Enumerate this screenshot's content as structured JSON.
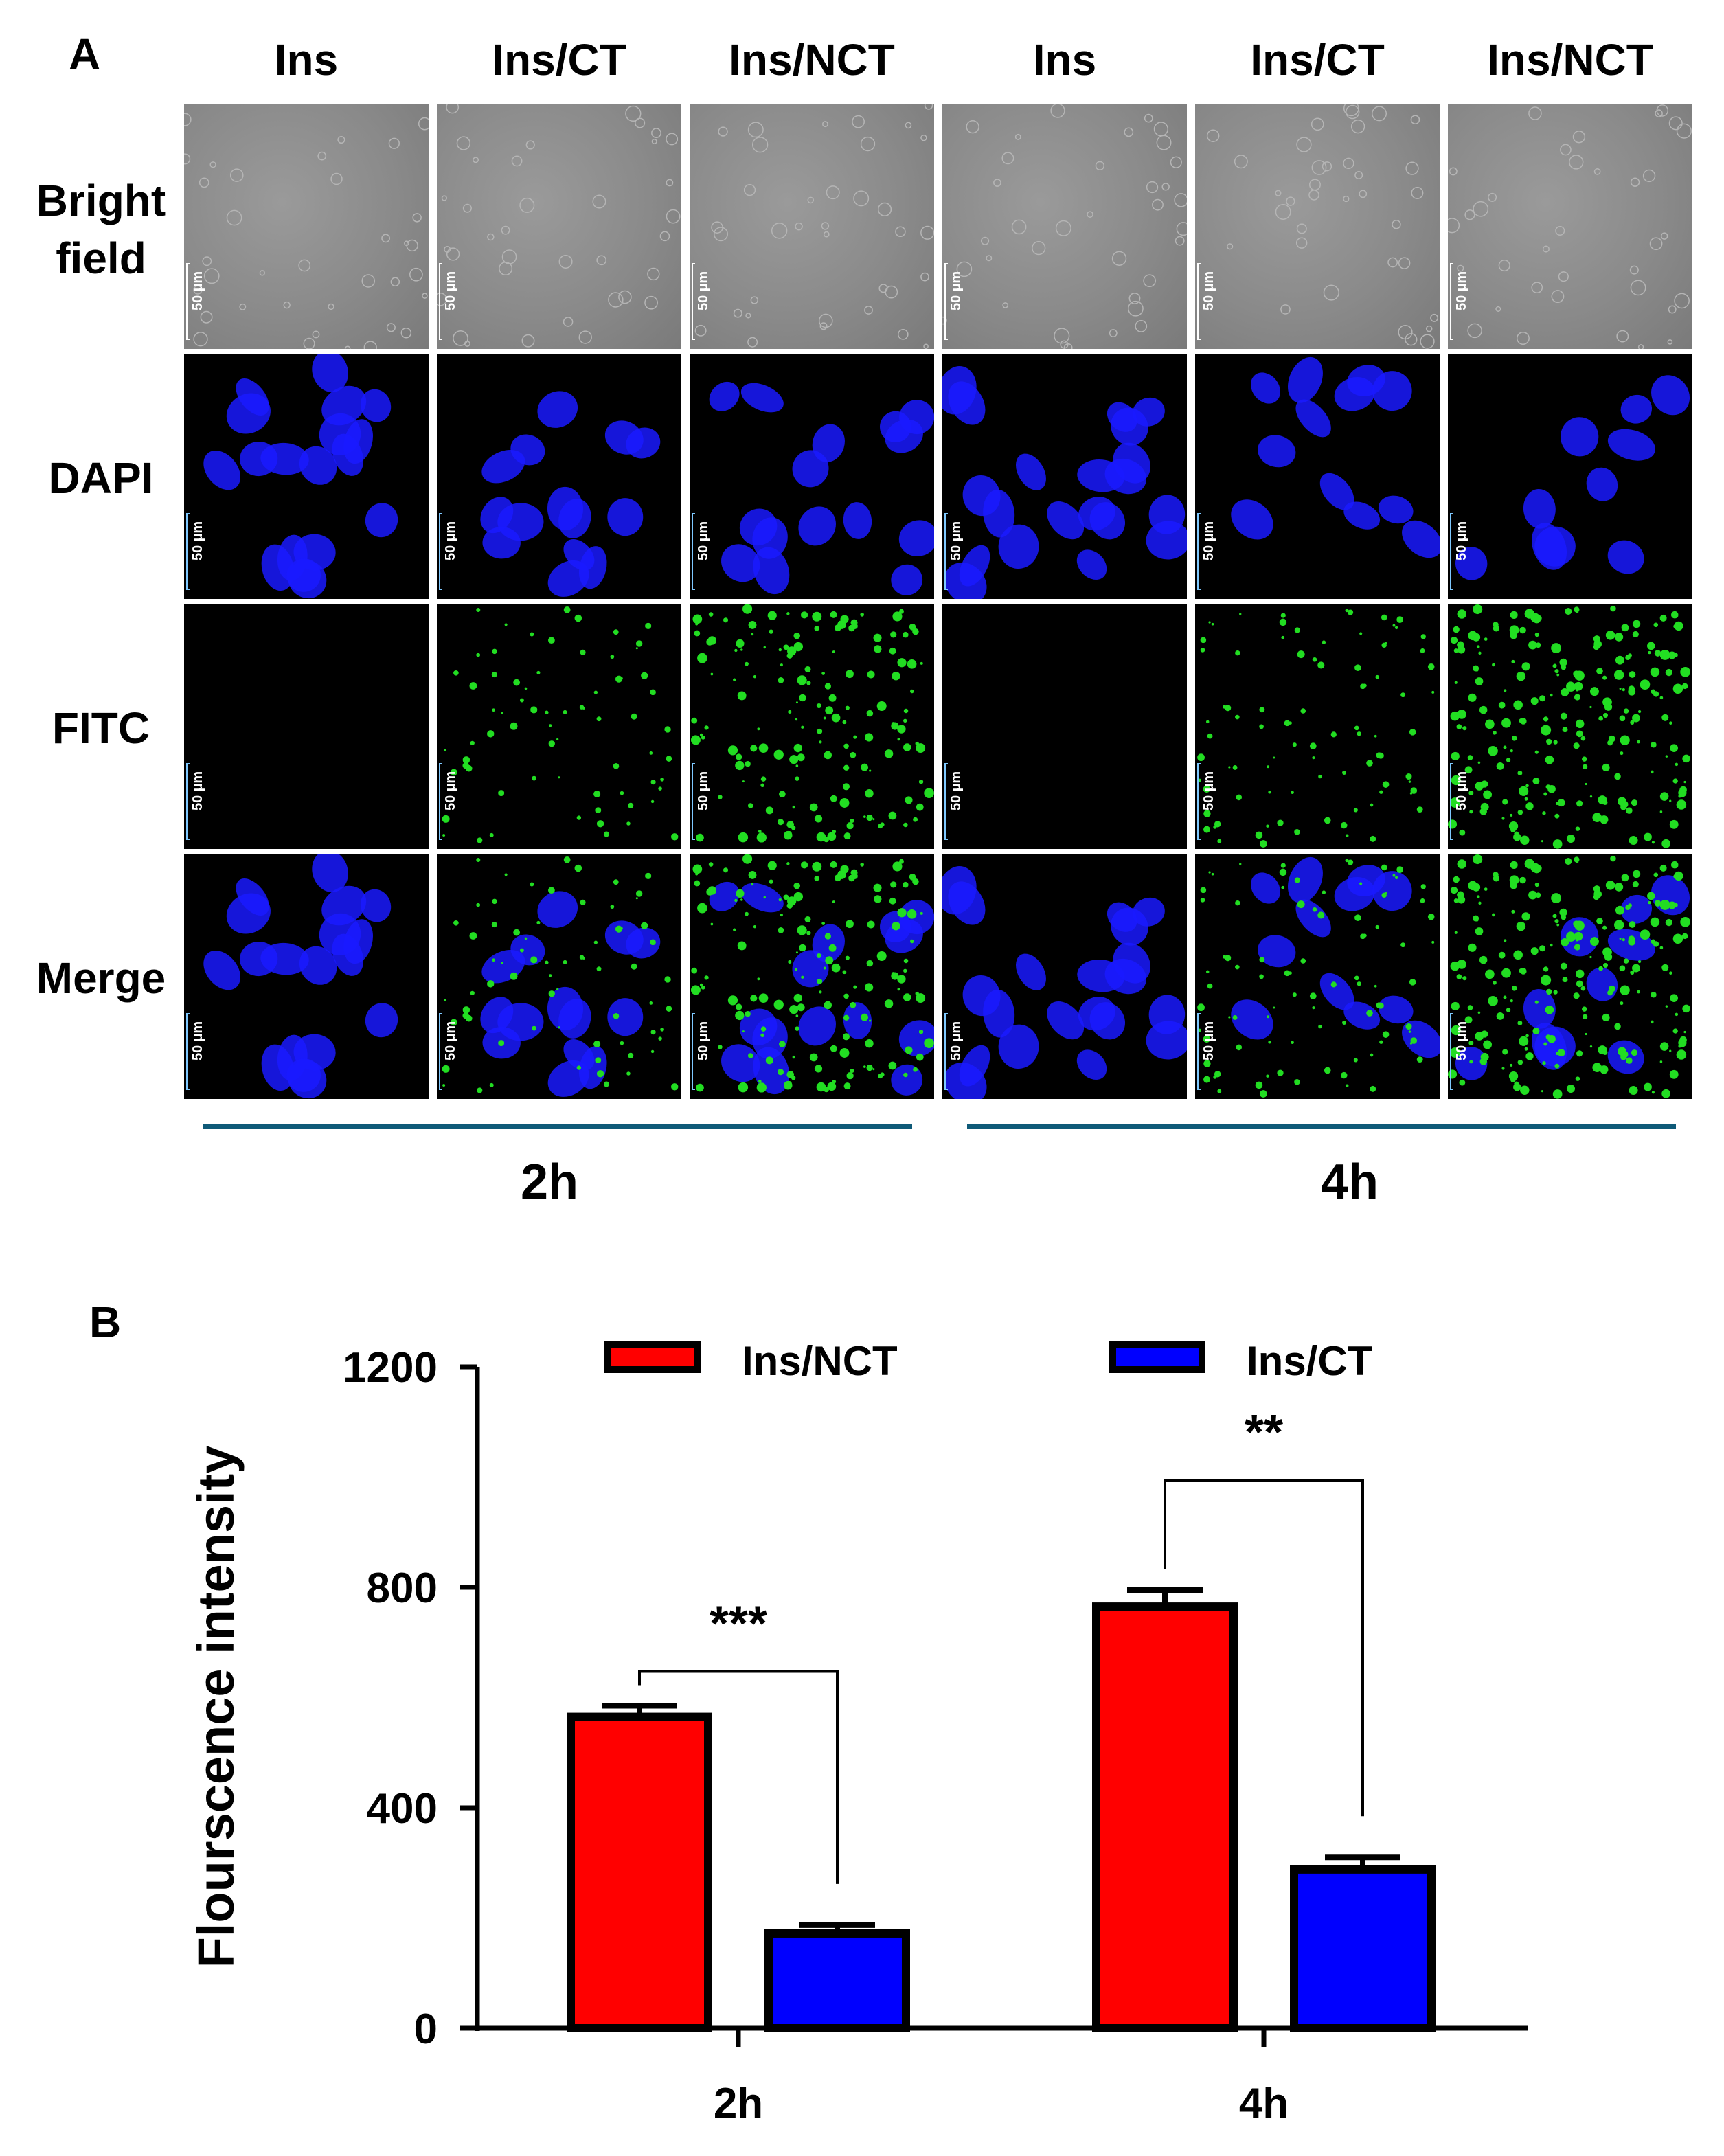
{
  "panel_a": {
    "letter": "A",
    "columns": [
      "Ins",
      "Ins/CT",
      "Ins/NCT",
      "Ins",
      "Ins/CT",
      "Ins/NCT"
    ],
    "rows": [
      {
        "label_line1": "Bright",
        "label_line2": "field",
        "kind": "bright"
      },
      {
        "label_line1": "DAPI",
        "label_line2": "",
        "kind": "dapi"
      },
      {
        "label_line1": "FITC",
        "label_line2": "",
        "kind": "fitc"
      },
      {
        "label_line1": "Merge",
        "label_line2": "",
        "kind": "merge"
      }
    ],
    "scale_text": "50 µm",
    "groups": [
      "2h",
      "4h"
    ],
    "colors": {
      "nucleus": "#1a1aff",
      "vesicle": "#22dd22",
      "group_line": "#0f5a78"
    }
  },
  "panel_b": {
    "letter": "B"
  },
  "chart_data": {
    "type": "bar",
    "categories": [
      "2h",
      "4h"
    ],
    "series": [
      {
        "name": "Ins/NCT",
        "values": [
          565,
          765
        ],
        "errors": [
          20,
          30
        ],
        "color": "#ff0000"
      },
      {
        "name": "Ins/CT",
        "values": [
          172,
          288
        ],
        "errors": [
          15,
          22
        ],
        "color": "#0000ff"
      }
    ],
    "ylabel": "Flourscence intensity",
    "xlabel": "",
    "ylim": [
      0,
      1200
    ],
    "yticks": [
      0,
      400,
      800,
      1200
    ],
    "legend": "top",
    "significance": [
      "***",
      "**"
    ]
  }
}
